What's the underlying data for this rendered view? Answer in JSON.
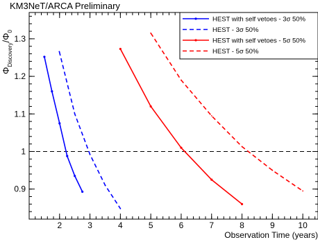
{
  "chart_data": {
    "type": "line",
    "title": "KM3NeT/ARCA Preliminary",
    "xlabel": "Observation Time (years)",
    "ylabel_main": "Φ",
    "ylabel_sub": "Discovery",
    "ylabel_rest": "/Φ",
    "ylabel_sub2": "0",
    "xlim": [
      1.0,
      10.5
    ],
    "ylim": [
      0.82,
      1.37
    ],
    "xticks": [
      2,
      3,
      4,
      5,
      6,
      7,
      8,
      9,
      10
    ],
    "yticks": [
      0.9,
      1.0,
      1.1,
      1.2,
      1.3
    ],
    "xtick_labels": [
      "2",
      "3",
      "4",
      "5",
      "6",
      "7",
      "8",
      "9",
      "10"
    ],
    "ytick_labels": [
      "0.9",
      "1",
      "1.1",
      "1.2",
      "1.3"
    ],
    "grid": false,
    "legend_position": "top-right",
    "reference_line": {
      "y": 1.0,
      "style": "dashed",
      "color": "#000000"
    },
    "series": [
      {
        "name": "HEST with self vetoes - 3σ 50%",
        "color": "#0000ff",
        "style": "solid",
        "markers": true,
        "x": [
          1.5,
          1.75,
          2.0,
          2.25,
          2.5,
          2.75
        ],
        "y": [
          1.252,
          1.16,
          1.075,
          0.988,
          0.935,
          0.893
        ]
      },
      {
        "name": "HEST - 3σ 50%",
        "color": "#0000ff",
        "style": "dashed",
        "markers": false,
        "x": [
          1.99,
          2.5,
          3.0,
          3.5,
          4.0
        ],
        "y": [
          1.266,
          1.1,
          0.992,
          0.91,
          0.848
        ]
      },
      {
        "name": "HEST with self vetoes - 5σ 50%",
        "color": "#ff0000",
        "style": "solid",
        "markers": true,
        "x": [
          4.0,
          5.0,
          6.0,
          7.0,
          8.0
        ],
        "y": [
          1.273,
          1.12,
          1.01,
          0.925,
          0.86
        ]
      },
      {
        "name": "HEST - 5σ 50%",
        "color": "#ff0000",
        "style": "dashed",
        "markers": false,
        "x": [
          5.0,
          6.0,
          7.0,
          8.0,
          9.0,
          10.0
        ],
        "y": [
          1.315,
          1.19,
          1.095,
          1.013,
          0.95,
          0.895
        ]
      }
    ]
  }
}
